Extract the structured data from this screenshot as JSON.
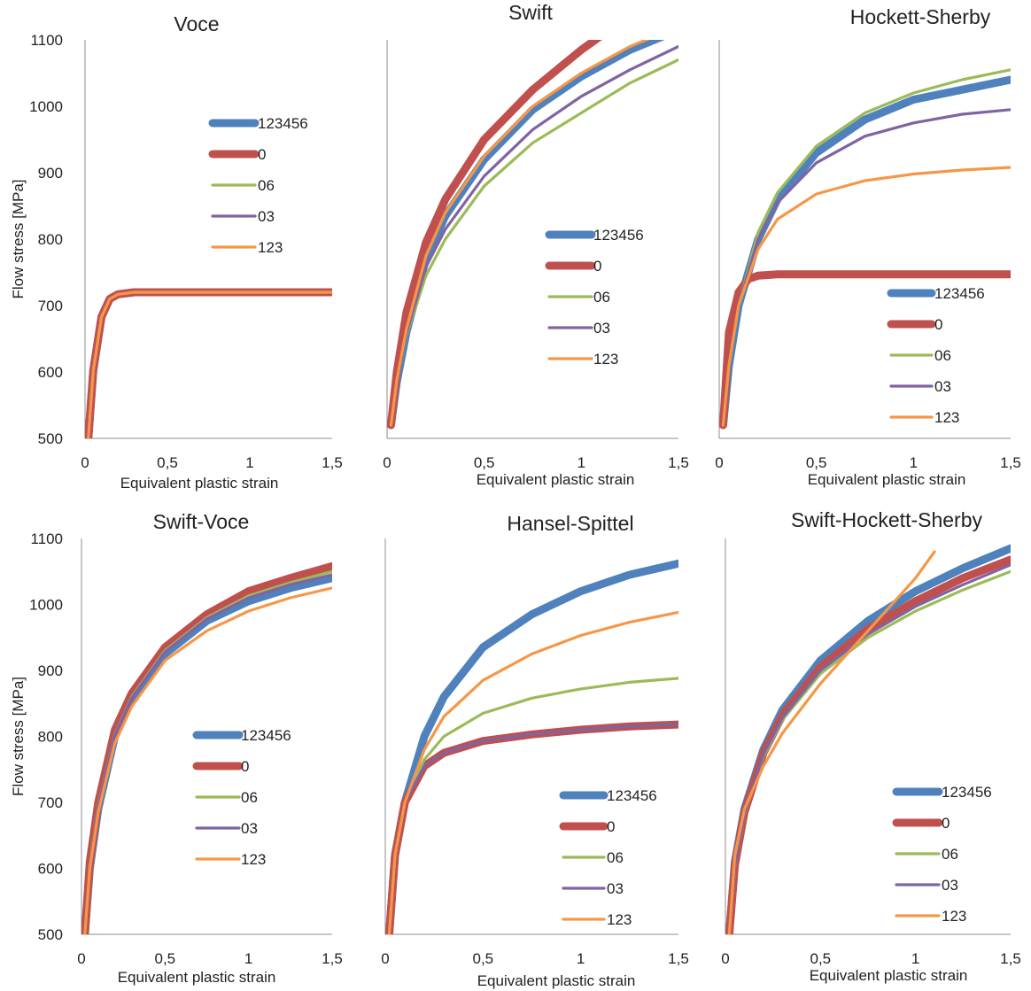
{
  "chart_data": [
    {
      "type": "line",
      "title": "Voce",
      "xlabel": "Equivalent plastic strain",
      "ylabel": "Flow stress [MPa]",
      "xlim": [
        0,
        1.5
      ],
      "ylim": [
        500,
        1100
      ],
      "xticks": [
        "0",
        "0,5",
        "1",
        "1,5"
      ],
      "yticks": [
        "500",
        "600",
        "700",
        "800",
        "900",
        "1000",
        "1100"
      ],
      "show_yticks": true,
      "grid": false,
      "legend_position": "upper-center-right",
      "series": [
        {
          "name": "123456",
          "color": "#4f81bd",
          "x": [
            0.02,
            0.05,
            0.1,
            0.15,
            0.2,
            0.3,
            0.5,
            1.0,
            1.5
          ],
          "y": [
            500,
            602,
            683,
            710,
            717,
            720,
            720,
            720,
            720
          ]
        },
        {
          "name": "0",
          "color": "#c0504d",
          "x": [
            0.02,
            0.05,
            0.1,
            0.15,
            0.2,
            0.3,
            0.5,
            1.0,
            1.5
          ],
          "y": [
            500,
            602,
            683,
            710,
            717,
            720,
            720,
            720,
            720
          ]
        },
        {
          "name": "06",
          "color": "#9bbb59",
          "x": [
            0.02,
            0.05,
            0.1,
            0.15,
            0.2,
            0.3,
            0.5,
            1.0,
            1.5
          ],
          "y": [
            500,
            602,
            683,
            710,
            717,
            720,
            720,
            720,
            720
          ]
        },
        {
          "name": "03",
          "color": "#8064a2",
          "x": [
            0.02,
            0.05,
            0.1,
            0.15,
            0.2,
            0.3,
            0.5,
            1.0,
            1.5
          ],
          "y": [
            500,
            602,
            683,
            710,
            717,
            720,
            720,
            720,
            720
          ]
        },
        {
          "name": "123",
          "color": "#f79646",
          "x": [
            0.02,
            0.05,
            0.1,
            0.15,
            0.2,
            0.3,
            0.5,
            1.0,
            1.5
          ],
          "y": [
            500,
            602,
            683,
            710,
            717,
            720,
            720,
            720,
            720
          ]
        }
      ]
    },
    {
      "type": "line",
      "title": "Swift",
      "xlabel": "Equivalent plastic strain",
      "ylabel": "",
      "xlim": [
        0,
        1.5
      ],
      "ylim": [
        500,
        1100
      ],
      "xticks": [
        "0",
        "0,5",
        "1",
        "1,5"
      ],
      "yticks": [],
      "show_yticks": false,
      "grid": false,
      "legend_position": "center-right",
      "series": [
        {
          "name": "123456",
          "color": "#4f81bd",
          "x": [
            0.02,
            0.05,
            0.1,
            0.2,
            0.3,
            0.5,
            0.75,
            1.0,
            1.25,
            1.5
          ],
          "y": [
            520,
            585,
            660,
            770,
            835,
            920,
            995,
            1045,
            1085,
            1115
          ]
        },
        {
          "name": "0",
          "color": "#c0504d",
          "x": [
            0.02,
            0.05,
            0.1,
            0.2,
            0.3,
            0.5,
            0.75,
            1.0,
            1.12
          ],
          "y": [
            520,
            600,
            690,
            795,
            860,
            950,
            1025,
            1085,
            1110
          ]
        },
        {
          "name": "06",
          "color": "#9bbb59",
          "x": [
            0.02,
            0.05,
            0.1,
            0.2,
            0.3,
            0.5,
            0.75,
            1.0,
            1.25,
            1.5
          ],
          "y": [
            520,
            585,
            655,
            745,
            800,
            880,
            945,
            990,
            1035,
            1070
          ]
        },
        {
          "name": "03",
          "color": "#8064a2",
          "x": [
            0.02,
            0.05,
            0.1,
            0.2,
            0.3,
            0.5,
            0.75,
            1.0,
            1.25,
            1.5
          ],
          "y": [
            520,
            585,
            658,
            758,
            815,
            895,
            965,
            1015,
            1055,
            1090
          ]
        },
        {
          "name": "123",
          "color": "#f79646",
          "x": [
            0.02,
            0.05,
            0.1,
            0.2,
            0.3,
            0.5,
            0.75,
            1.0,
            1.25,
            1.5
          ],
          "y": [
            520,
            588,
            665,
            775,
            840,
            925,
            1000,
            1050,
            1090,
            1120
          ]
        }
      ]
    },
    {
      "type": "line",
      "title": "Hockett-Sherby",
      "xlabel": "Equivalent plastic strain",
      "ylabel": "",
      "xlim": [
        0,
        1.5
      ],
      "ylim": [
        500,
        1100
      ],
      "xticks": [
        "0",
        "0,5",
        "1",
        "1,5"
      ],
      "yticks": [],
      "show_yticks": false,
      "grid": false,
      "legend_position": "lower-right",
      "series": [
        {
          "name": "123456",
          "color": "#4f81bd",
          "x": [
            0.02,
            0.05,
            0.1,
            0.2,
            0.3,
            0.5,
            0.75,
            1.0,
            1.25,
            1.5
          ],
          "y": [
            520,
            610,
            700,
            800,
            860,
            930,
            980,
            1010,
            1025,
            1040
          ]
        },
        {
          "name": "0",
          "color": "#c0504d",
          "x": [
            0.02,
            0.05,
            0.1,
            0.15,
            0.2,
            0.3,
            0.5,
            1.0,
            1.5
          ],
          "y": [
            520,
            660,
            720,
            740,
            745,
            747,
            747,
            747,
            747
          ]
        },
        {
          "name": "06",
          "color": "#9bbb59",
          "x": [
            0.02,
            0.05,
            0.1,
            0.2,
            0.3,
            0.5,
            0.75,
            1.0,
            1.25,
            1.5
          ],
          "y": [
            520,
            610,
            700,
            810,
            870,
            940,
            990,
            1020,
            1040,
            1055
          ]
        },
        {
          "name": "03",
          "color": "#8064a2",
          "x": [
            0.02,
            0.05,
            0.1,
            0.2,
            0.3,
            0.5,
            0.75,
            1.0,
            1.25,
            1.5
          ],
          "y": [
            520,
            610,
            700,
            800,
            855,
            915,
            955,
            975,
            988,
            995
          ]
        },
        {
          "name": "123",
          "color": "#f79646",
          "x": [
            0.02,
            0.05,
            0.1,
            0.2,
            0.3,
            0.5,
            0.75,
            1.0,
            1.25,
            1.5
          ],
          "y": [
            520,
            610,
            700,
            785,
            830,
            868,
            888,
            898,
            904,
            908
          ]
        }
      ]
    },
    {
      "type": "line",
      "title": "Swift-Voce",
      "xlabel": "Equivalent plastic strain",
      "ylabel": "Flow stress [MPa]",
      "xlim": [
        0,
        1.5
      ],
      "ylim": [
        500,
        1100
      ],
      "xticks": [
        "0",
        "0,5",
        "1",
        "1,5"
      ],
      "yticks": [
        "500",
        "600",
        "700",
        "800",
        "900",
        "1000",
        "1100"
      ],
      "show_yticks": true,
      "grid": false,
      "legend_position": "center-right",
      "series": [
        {
          "name": "123456",
          "color": "#4f81bd",
          "x": [
            0.02,
            0.05,
            0.1,
            0.2,
            0.3,
            0.5,
            0.75,
            1.0,
            1.25,
            1.5
          ],
          "y": [
            500,
            600,
            690,
            800,
            855,
            925,
            975,
            1005,
            1025,
            1040
          ]
        },
        {
          "name": "0",
          "color": "#c0504d",
          "x": [
            0.02,
            0.05,
            0.1,
            0.2,
            0.3,
            0.5,
            0.75,
            1.0,
            1.25,
            1.5
          ],
          "y": [
            500,
            610,
            700,
            810,
            865,
            935,
            985,
            1020,
            1040,
            1058
          ]
        },
        {
          "name": "06",
          "color": "#9bbb59",
          "x": [
            0.02,
            0.05,
            0.1,
            0.2,
            0.3,
            0.5,
            0.75,
            1.0,
            1.25,
            1.5
          ],
          "y": [
            500,
            605,
            695,
            803,
            860,
            930,
            980,
            1013,
            1033,
            1050
          ]
        },
        {
          "name": "03",
          "color": "#8064a2",
          "x": [
            0.02,
            0.05,
            0.1,
            0.2,
            0.3,
            0.5,
            0.75,
            1.0,
            1.25,
            1.5
          ],
          "y": [
            500,
            603,
            693,
            802,
            858,
            928,
            978,
            1010,
            1030,
            1045
          ]
        },
        {
          "name": "123",
          "color": "#f79646",
          "x": [
            0.02,
            0.05,
            0.1,
            0.2,
            0.3,
            0.5,
            0.75,
            1.0,
            1.25,
            1.5
          ],
          "y": [
            500,
            600,
            685,
            790,
            845,
            915,
            960,
            990,
            1010,
            1025
          ]
        }
      ]
    },
    {
      "type": "line",
      "title": "Hansel-Spittel",
      "xlabel": "Equivalent plastic strain",
      "ylabel": "",
      "xlim": [
        0,
        1.5
      ],
      "ylim": [
        500,
        1100
      ],
      "xticks": [
        "0",
        "0,5",
        "1",
        "1,5"
      ],
      "yticks": [],
      "show_yticks": false,
      "grid": false,
      "legend_position": "lower-right",
      "series": [
        {
          "name": "123456",
          "color": "#4f81bd",
          "x": [
            0.02,
            0.05,
            0.1,
            0.2,
            0.3,
            0.5,
            0.75,
            1.0,
            1.25,
            1.5
          ],
          "y": [
            500,
            620,
            700,
            800,
            860,
            935,
            985,
            1020,
            1045,
            1062
          ]
        },
        {
          "name": "0",
          "color": "#c0504d",
          "x": [
            0.02,
            0.05,
            0.1,
            0.2,
            0.3,
            0.5,
            0.75,
            1.0,
            1.25,
            1.5
          ],
          "y": [
            500,
            620,
            700,
            755,
            775,
            793,
            803,
            810,
            815,
            818
          ]
        },
        {
          "name": "06",
          "color": "#9bbb59",
          "x": [
            0.02,
            0.05,
            0.1,
            0.2,
            0.3,
            0.5,
            0.75,
            1.0,
            1.25,
            1.5
          ],
          "y": [
            500,
            620,
            700,
            765,
            800,
            835,
            858,
            872,
            882,
            888
          ]
        },
        {
          "name": "03",
          "color": "#8064a2",
          "x": [
            0.02,
            0.05,
            0.1,
            0.2,
            0.3,
            0.5,
            0.75,
            1.0,
            1.25,
            1.5
          ],
          "y": [
            500,
            620,
            700,
            755,
            775,
            793,
            803,
            810,
            815,
            818
          ]
        },
        {
          "name": "123",
          "color": "#f79646",
          "x": [
            0.02,
            0.05,
            0.1,
            0.2,
            0.3,
            0.5,
            0.75,
            1.0,
            1.25,
            1.5
          ],
          "y": [
            500,
            620,
            700,
            780,
            830,
            885,
            925,
            953,
            973,
            988
          ]
        }
      ]
    },
    {
      "type": "line",
      "title": "Swift-Hockett-Sherby",
      "xlabel": "Equivalent plastic strain",
      "ylabel": "",
      "xlim": [
        0,
        1.5
      ],
      "ylim": [
        500,
        1100
      ],
      "xticks": [
        "0",
        "0,5",
        "1",
        "1,5"
      ],
      "yticks": [],
      "show_yticks": false,
      "grid": false,
      "legend_position": "lower-right",
      "series": [
        {
          "name": "123456",
          "color": "#4f81bd",
          "x": [
            0.02,
            0.05,
            0.1,
            0.2,
            0.3,
            0.5,
            0.75,
            1.0,
            1.25,
            1.5
          ],
          "y": [
            500,
            610,
            690,
            780,
            840,
            915,
            975,
            1020,
            1055,
            1085
          ]
        },
        {
          "name": "0",
          "color": "#c0504d",
          "x": [
            0.02,
            0.05,
            0.1,
            0.2,
            0.3,
            0.5,
            0.75,
            1.0,
            1.25,
            1.5
          ],
          "y": [
            500,
            605,
            685,
            775,
            832,
            905,
            963,
            1005,
            1040,
            1068
          ]
        },
        {
          "name": "06",
          "color": "#9bbb59",
          "x": [
            0.02,
            0.05,
            0.1,
            0.2,
            0.3,
            0.5,
            0.75,
            1.0,
            1.25,
            1.5
          ],
          "y": [
            500,
            603,
            682,
            770,
            825,
            895,
            950,
            990,
            1022,
            1050
          ]
        },
        {
          "name": "03",
          "color": "#8064a2",
          "x": [
            0.02,
            0.05,
            0.1,
            0.2,
            0.3,
            0.5,
            0.75,
            1.0,
            1.25,
            1.5
          ],
          "y": [
            500,
            604,
            683,
            773,
            828,
            900,
            955,
            997,
            1030,
            1060
          ]
        },
        {
          "name": "123",
          "color": "#f79646",
          "x": [
            0.02,
            0.05,
            0.1,
            0.2,
            0.3,
            0.5,
            0.75,
            1.0,
            1.1
          ],
          "y": [
            500,
            620,
            690,
            755,
            805,
            880,
            960,
            1040,
            1080
          ]
        }
      ]
    }
  ]
}
